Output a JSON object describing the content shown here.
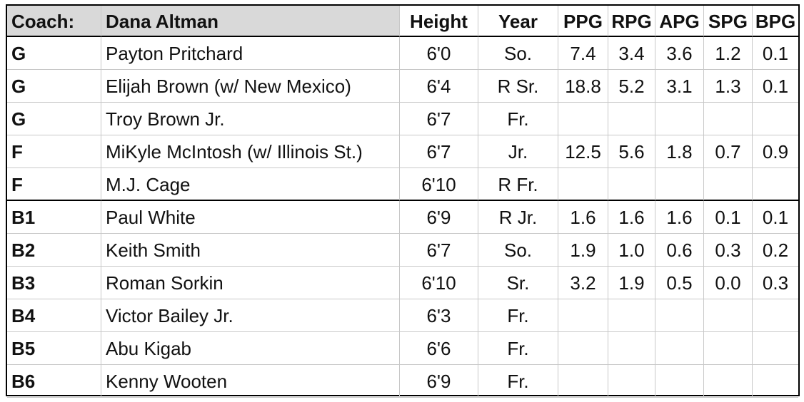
{
  "table": {
    "header": [
      "Coach:",
      "Dana Altman",
      "Height",
      "Year",
      "PPG",
      "RPG",
      "APG",
      "SPG",
      "BPG"
    ],
    "rows": [
      [
        "G",
        "Payton Pritchard",
        "6'0",
        "So.",
        "7.4",
        "3.4",
        "3.6",
        "1.2",
        "0.1"
      ],
      [
        "G",
        "Elijah Brown (w/ New Mexico)",
        "6'4",
        "R Sr.",
        "18.8",
        "5.2",
        "3.1",
        "1.3",
        "0.1"
      ],
      [
        "G",
        "Troy Brown Jr.",
        "6'7",
        "Fr.",
        null,
        null,
        null,
        null,
        null
      ],
      [
        "F",
        "MiKyle McIntosh (w/ Illinois St.)",
        "6'7",
        "Jr.",
        "12.5",
        "5.6",
        "1.8",
        "0.7",
        "0.9"
      ],
      [
        "F",
        "M.J. Cage",
        "6'10",
        "R Fr.",
        null,
        null,
        null,
        null,
        null
      ],
      [
        "B1",
        "Paul White",
        "6'9",
        "R Jr.",
        "1.6",
        "1.6",
        "1.6",
        "0.1",
        "0.1"
      ],
      [
        "B2",
        "Keith Smith",
        "6'7",
        "So.",
        "1.9",
        "1.0",
        "0.6",
        "0.3",
        "0.2"
      ],
      [
        "B3",
        "Roman Sorkin",
        "6'10",
        "Sr.",
        "3.2",
        "1.9",
        "0.5",
        "0.0",
        "0.3"
      ],
      [
        "B4",
        "Victor Bailey Jr.",
        "6'3",
        "Fr.",
        null,
        null,
        null,
        null,
        null
      ],
      [
        "B5",
        "Abu Kigab",
        "6'6",
        "Fr.",
        null,
        null,
        null,
        null,
        null
      ],
      [
        "B6",
        "Kenny Wooten",
        "6'9",
        "Fr.",
        null,
        null,
        null,
        null,
        null
      ]
    ]
  }
}
